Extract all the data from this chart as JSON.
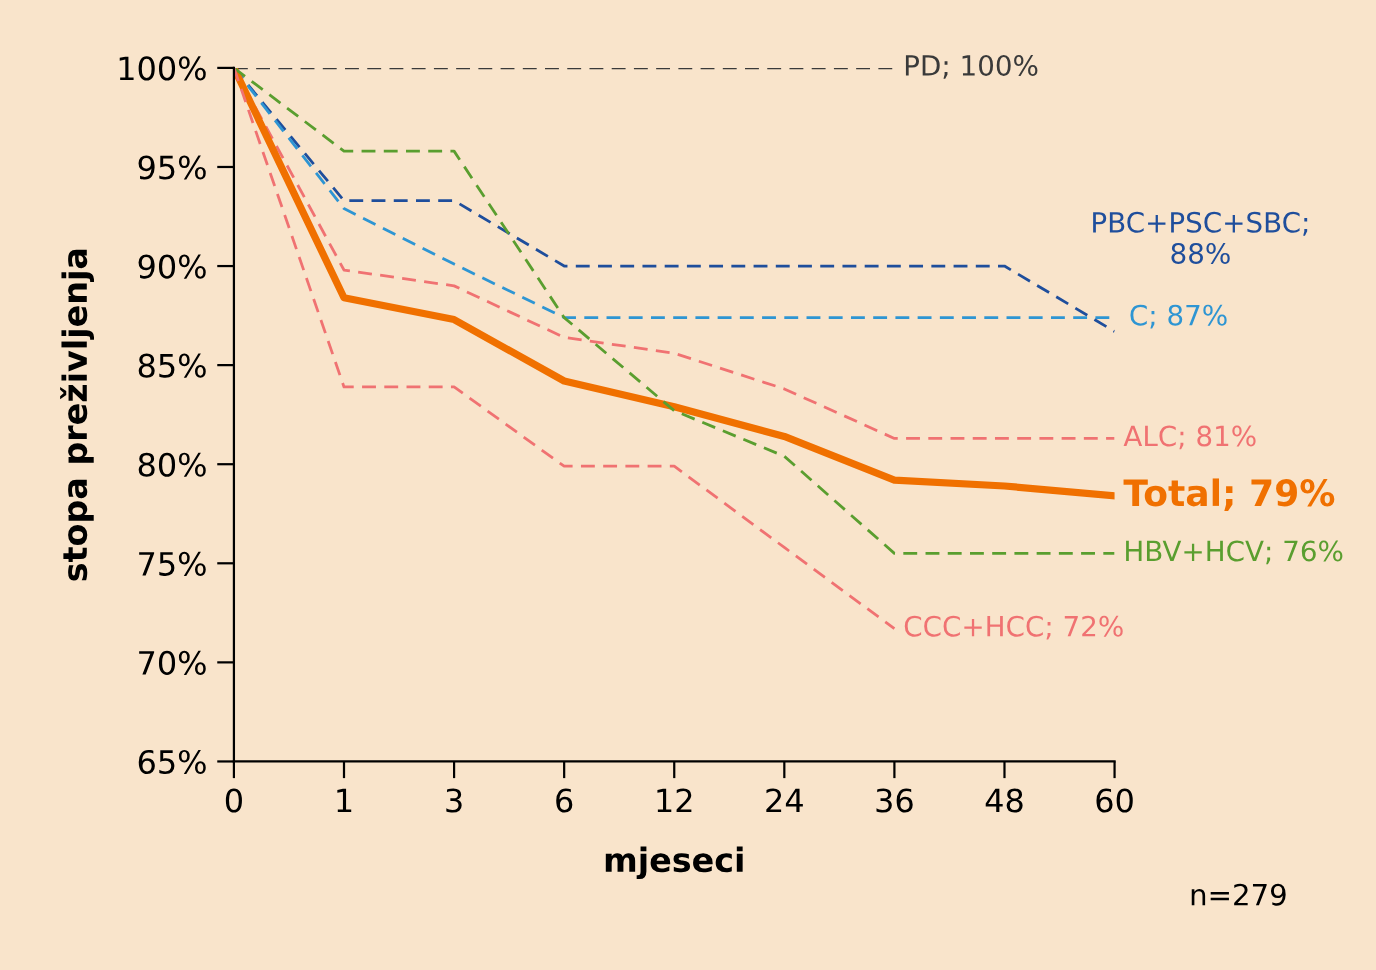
{
  "chart_data": {
    "type": "line",
    "xlabel": "mjeseci",
    "ylabel": "stopa preživljenja",
    "categories": [
      "0",
      "1",
      "3",
      "6",
      "12",
      "24",
      "36",
      "48",
      "60"
    ],
    "ylim": [
      65,
      100
    ],
    "yticks": [
      {
        "value": 65,
        "label": "65%"
      },
      {
        "value": 70,
        "label": "70%"
      },
      {
        "value": 75,
        "label": "75%"
      },
      {
        "value": 80,
        "label": "80%"
      },
      {
        "value": 85,
        "label": "85%"
      },
      {
        "value": 90,
        "label": "90%"
      },
      {
        "value": 95,
        "label": "95%"
      },
      {
        "value": 100,
        "label": "100%"
      }
    ],
    "grid": false,
    "marker": "none",
    "annotations": [
      "n=279"
    ],
    "series": [
      {
        "name": "PD; 100%",
        "color": "#3a3a3a",
        "line_style": "dashed",
        "values": [
          100,
          100,
          100,
          100,
          100,
          100,
          100,
          null,
          null
        ]
      },
      {
        "name": "PBC+PSC+SBC;\n88%",
        "color": "#1f4e9c",
        "line_style": "dashed",
        "values": [
          100,
          93.3,
          93.3,
          90.0,
          90.0,
          90.0,
          90.0,
          90.0,
          86.7
        ]
      },
      {
        "name": "C; 87%",
        "color": "#2e95d3",
        "line_style": "dashed",
        "values": [
          100,
          92.9,
          90.1,
          87.4,
          87.4,
          87.4,
          87.4,
          87.4,
          87.4
        ]
      },
      {
        "name": "ALC; 81%",
        "color": "#f07272",
        "line_style": "dashed",
        "values": [
          100,
          89.8,
          89.0,
          86.4,
          85.6,
          83.8,
          81.3,
          81.3,
          81.3
        ]
      },
      {
        "name": "Total; 79%",
        "color": "#f07000",
        "line_style": "solid",
        "values": [
          100,
          88.4,
          87.3,
          84.2,
          82.9,
          81.4,
          79.2,
          78.9,
          78.4
        ]
      },
      {
        "name": "HBV+HCV; 76%",
        "color": "#5a9e2f",
        "line_style": "dashed",
        "values": [
          100,
          95.8,
          95.8,
          87.4,
          82.7,
          80.4,
          75.5,
          75.5,
          75.5
        ]
      },
      {
        "name": "CCC+HCC; 72%",
        "color": "#f07272",
        "line_style": "dashed",
        "values": [
          100,
          83.9,
          83.9,
          79.9,
          79.9,
          75.8,
          71.7,
          null,
          null
        ]
      }
    ]
  }
}
